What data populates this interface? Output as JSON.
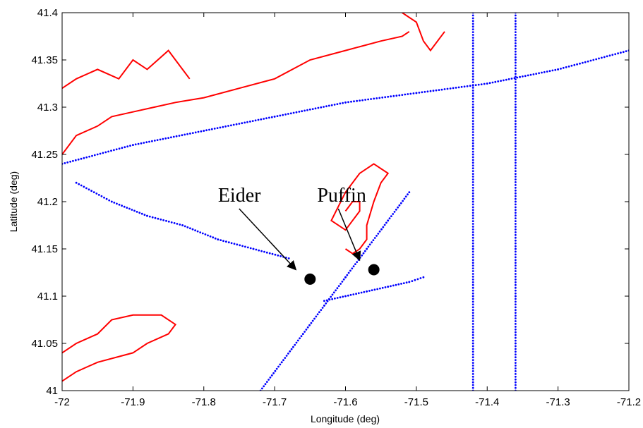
{
  "chart_data": {
    "type": "scatter",
    "title": "",
    "xlabel": "Longitude (deg)",
    "ylabel": "Latitude (deg)",
    "xlim": [
      -72,
      -71.2
    ],
    "ylim": [
      41,
      41.4
    ],
    "xticks": [
      "-72",
      "-71.9",
      "-71.8",
      "-71.7",
      "-71.6",
      "-71.5",
      "-71.4",
      "-71.3",
      "-71.2"
    ],
    "yticks": [
      "41",
      "41.05",
      "41.1",
      "41.15",
      "41.2",
      "41.25",
      "41.3",
      "41.35",
      "41.4"
    ],
    "grid": false,
    "colors": {
      "coastline": "#ff0000",
      "ship_tracks": "#0000ff",
      "markers": "#000000"
    },
    "series": [
      {
        "kind": "coastline-line",
        "x": [
          -72.0,
          -71.98,
          -71.95,
          -71.9,
          -71.88,
          -71.85,
          -71.84,
          -71.86,
          -71.9,
          -71.93,
          -71.95,
          -71.98,
          -72.0
        ],
        "y": [
          41.01,
          41.02,
          41.03,
          41.04,
          41.05,
          41.06,
          41.07,
          41.08,
          41.08,
          41.075,
          41.06,
          41.05,
          41.04
        ]
      },
      {
        "kind": "coastline-line",
        "x": [
          -72.0,
          -71.98,
          -71.95,
          -71.93,
          -71.9,
          -71.87,
          -71.84,
          -71.8,
          -71.75,
          -71.7,
          -71.65,
          -71.6,
          -71.55,
          -71.52,
          -71.51
        ],
        "y": [
          41.25,
          41.27,
          41.28,
          41.29,
          41.295,
          41.3,
          41.305,
          41.31,
          41.32,
          41.33,
          41.35,
          41.36,
          41.37,
          41.375,
          41.38
        ]
      },
      {
        "kind": "coastline-line",
        "x": [
          -72.0,
          -71.98,
          -71.95,
          -71.92,
          -71.9,
          -71.88,
          -71.85,
          -71.83,
          -71.82
        ],
        "y": [
          41.32,
          41.33,
          41.34,
          41.33,
          41.35,
          41.34,
          41.36,
          41.34,
          41.33
        ]
      },
      {
        "kind": "coastline-line",
        "x": [
          -71.52,
          -71.5,
          -71.49,
          -71.48,
          -71.46
        ],
        "y": [
          41.4,
          41.39,
          41.37,
          41.36,
          41.38
        ]
      },
      {
        "kind": "coastline-line",
        "x": [
          -71.6,
          -71.59,
          -71.58,
          -71.57,
          -71.57,
          -71.56,
          -71.55,
          -71.54,
          -71.56,
          -71.58,
          -71.6,
          -71.62,
          -71.6,
          -71.59,
          -71.58,
          -71.58,
          -71.59,
          -71.6
        ],
        "y": [
          41.15,
          41.145,
          41.15,
          41.16,
          41.175,
          41.2,
          41.22,
          41.23,
          41.24,
          41.23,
          41.21,
          41.18,
          41.17,
          41.18,
          41.19,
          41.2,
          41.2,
          41.19
        ]
      },
      {
        "kind": "ship-tracks",
        "x": [
          -72.0,
          -71.9,
          -71.8,
          -71.7,
          -71.6,
          -71.5,
          -71.4,
          -71.3,
          -71.2
        ],
        "y": [
          41.24,
          41.26,
          41.275,
          41.29,
          41.305,
          41.315,
          41.325,
          41.34,
          41.36
        ]
      },
      {
        "kind": "ship-tracks",
        "x": [
          -71.42,
          -71.42,
          -71.42,
          -71.42,
          -71.42,
          -71.42,
          -71.42,
          -71.42,
          -71.42
        ],
        "y": [
          41.0,
          41.05,
          41.1,
          41.15,
          41.2,
          41.25,
          41.3,
          41.35,
          41.4
        ]
      },
      {
        "kind": "ship-tracks",
        "x": [
          -71.36,
          -71.36,
          -71.36,
          -71.36,
          -71.36,
          -71.36,
          -71.36,
          -71.36,
          -71.36
        ],
        "y": [
          41.0,
          41.05,
          41.1,
          41.15,
          41.2,
          41.25,
          41.3,
          41.35,
          41.4
        ]
      },
      {
        "kind": "ship-tracks",
        "x": [
          -71.72,
          -71.69,
          -71.66,
          -71.63,
          -71.6,
          -71.57,
          -71.54,
          -71.51
        ],
        "y": [
          41.0,
          41.03,
          41.06,
          41.09,
          41.12,
          41.15,
          41.18,
          41.21
        ]
      },
      {
        "kind": "ship-tracks",
        "x": [
          -71.63,
          -71.6,
          -71.57,
          -71.54,
          -71.51,
          -71.49
        ],
        "y": [
          41.095,
          41.1,
          41.105,
          41.11,
          41.115,
          41.12
        ]
      },
      {
        "kind": "ship-tracks",
        "x": [
          -71.98,
          -71.93,
          -71.88,
          -71.83,
          -71.78,
          -71.73,
          -71.68
        ],
        "y": [
          41.22,
          41.2,
          41.185,
          41.175,
          41.16,
          41.15,
          41.14
        ]
      }
    ],
    "markers": [
      {
        "name": "Eider",
        "x": -71.65,
        "y": 41.118
      },
      {
        "name": "Puffin",
        "x": -71.56,
        "y": 41.128
      }
    ],
    "annotations": [
      {
        "text": "Eider",
        "x": -71.78,
        "y": 41.2,
        "arrow_to": [
          -71.67,
          41.128
        ]
      },
      {
        "text": "Puffin",
        "x": -71.64,
        "y": 41.2,
        "arrow_to": [
          -71.58,
          41.138
        ]
      }
    ]
  }
}
